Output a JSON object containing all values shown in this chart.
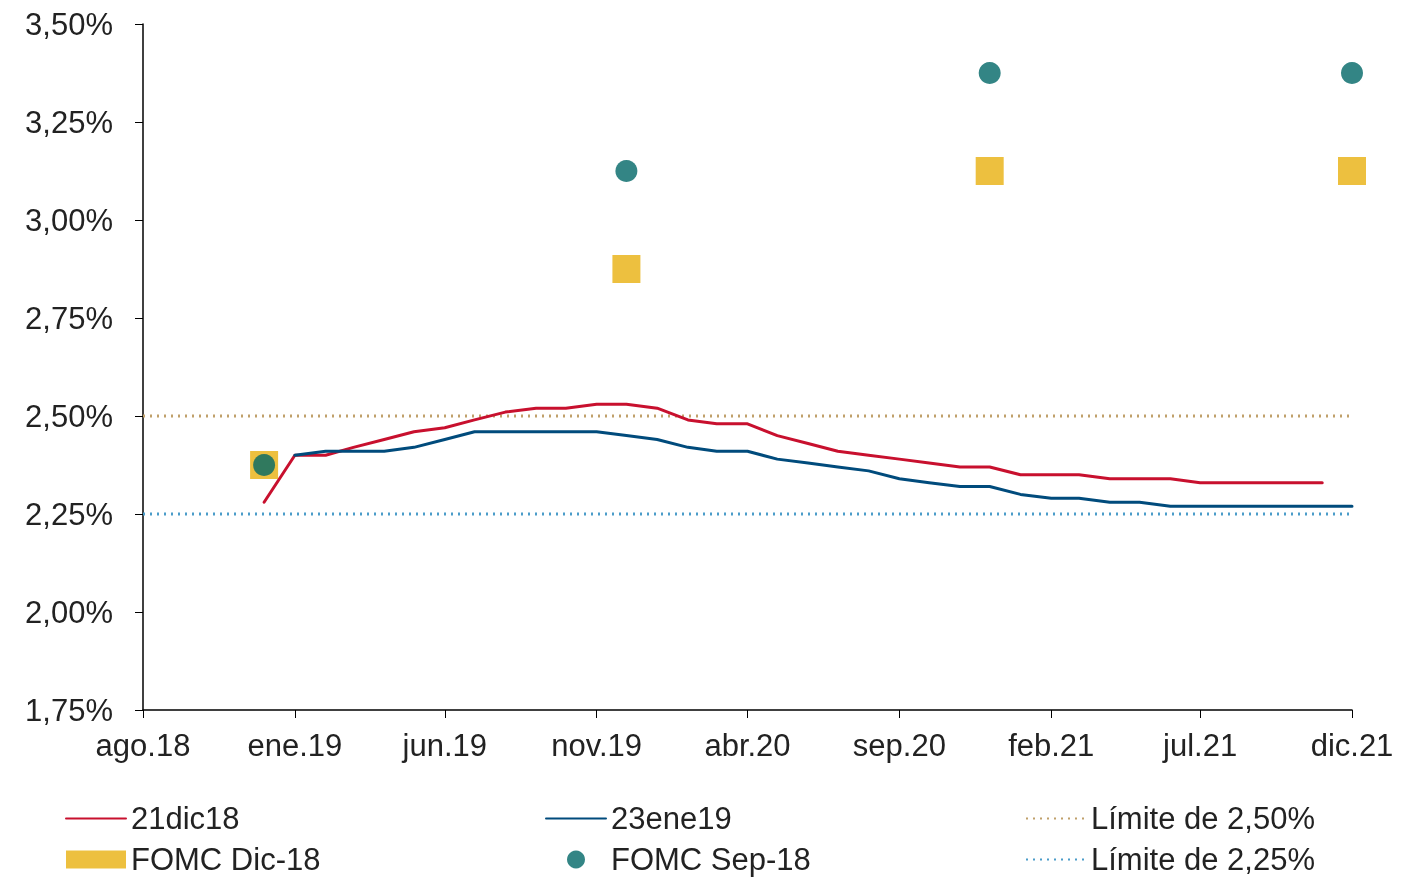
{
  "chart_data": {
    "type": "line",
    "xlim": [
      "2018-08",
      "2021-12"
    ],
    "xticks": [
      {
        "value": "2018-08",
        "label": "ago.18"
      },
      {
        "value": "2019-01",
        "label": "ene.19"
      },
      {
        "value": "2019-06",
        "label": "jun.19"
      },
      {
        "value": "2019-11",
        "label": "nov.19"
      },
      {
        "value": "2020-04",
        "label": "abr.20"
      },
      {
        "value": "2020-09",
        "label": "sep.20"
      },
      {
        "value": "2021-02",
        "label": "feb.21"
      },
      {
        "value": "2021-07",
        "label": "jul.21"
      },
      {
        "value": "2021-12",
        "label": "dic.21"
      }
    ],
    "ylim": [
      1.75,
      3.5
    ],
    "yticks": [
      {
        "value": 1.75,
        "label": "1,75%"
      },
      {
        "value": 2.0,
        "label": "2,00%"
      },
      {
        "value": 2.25,
        "label": "2,25%"
      },
      {
        "value": 2.5,
        "label": "2,50%"
      },
      {
        "value": 2.75,
        "label": "2,75%"
      },
      {
        "value": 3.0,
        "label": "3,00%"
      },
      {
        "value": 3.25,
        "label": "3,25%"
      },
      {
        "value": 3.5,
        "label": "3,50%"
      }
    ],
    "grid": false,
    "legend": "bottom",
    "line_style": "solid",
    "marker": "none",
    "series": [
      {
        "name": "21dic18",
        "color": "#c8102e",
        "x": [
          "2018-12",
          "2019-01",
          "2019-02",
          "2019-03",
          "2019-04",
          "2019-05",
          "2019-06",
          "2019-07",
          "2019-08",
          "2019-09",
          "2019-10",
          "2019-11",
          "2019-12",
          "2020-01",
          "2020-02",
          "2020-03",
          "2020-04",
          "2020-05",
          "2020-06",
          "2020-07",
          "2020-08",
          "2020-09",
          "2020-10",
          "2020-11",
          "2020-12",
          "2021-01",
          "2021-02",
          "2021-03",
          "2021-04",
          "2021-05",
          "2021-06",
          "2021-07",
          "2021-08",
          "2021-09",
          "2021-10",
          "2021-11"
        ],
        "values": [
          2.28,
          2.4,
          2.4,
          2.42,
          2.44,
          2.46,
          2.47,
          2.49,
          2.51,
          2.52,
          2.52,
          2.53,
          2.53,
          2.52,
          2.49,
          2.48,
          2.48,
          2.45,
          2.43,
          2.41,
          2.4,
          2.39,
          2.38,
          2.37,
          2.37,
          2.35,
          2.35,
          2.35,
          2.34,
          2.34,
          2.34,
          2.33,
          2.33,
          2.33,
          2.33,
          2.33
        ]
      },
      {
        "name": "23ene19",
        "color": "#004b7c",
        "x": [
          "2019-01",
          "2019-02",
          "2019-03",
          "2019-04",
          "2019-05",
          "2019-06",
          "2019-07",
          "2019-08",
          "2019-09",
          "2019-10",
          "2019-11",
          "2019-12",
          "2020-01",
          "2020-02",
          "2020-03",
          "2020-04",
          "2020-05",
          "2020-06",
          "2020-07",
          "2020-08",
          "2020-09",
          "2020-10",
          "2020-11",
          "2020-12",
          "2021-01",
          "2021-02",
          "2021-03",
          "2021-04",
          "2021-05",
          "2021-06",
          "2021-07",
          "2021-08",
          "2021-09",
          "2021-10",
          "2021-11",
          "2021-12"
        ],
        "values": [
          2.4,
          2.41,
          2.41,
          2.41,
          2.42,
          2.44,
          2.46,
          2.46,
          2.46,
          2.46,
          2.46,
          2.45,
          2.44,
          2.42,
          2.41,
          2.41,
          2.39,
          2.38,
          2.37,
          2.36,
          2.34,
          2.33,
          2.32,
          2.32,
          2.3,
          2.29,
          2.29,
          2.28,
          2.28,
          2.27,
          2.27,
          2.27,
          2.27,
          2.27,
          2.27,
          2.27
        ]
      },
      {
        "name": "FOMC Dic-18",
        "color": "#e8b00f",
        "type": "scatter",
        "marker": "square",
        "x": [
          "2018-12",
          "2019-12",
          "2020-12",
          "2021-12"
        ],
        "values": [
          2.375,
          2.875,
          3.125,
          3.125
        ]
      },
      {
        "name": "FOMC Sep-18",
        "color": "#006666",
        "type": "scatter",
        "marker": "circle",
        "x": [
          "2018-12",
          "2019-12",
          "2020-12",
          "2021-12"
        ],
        "values": [
          2.375,
          3.125,
          3.375,
          3.375
        ]
      }
    ],
    "ref_lines": [
      {
        "axis": "y",
        "value": 2.5,
        "label": "Límite de 2,50%",
        "color": "#c0a06a",
        "line_style": "dotted"
      },
      {
        "axis": "y",
        "value": 2.25,
        "label": "Límite de 2,25%",
        "color": "#4a9cc9",
        "line_style": "dotted"
      }
    ]
  }
}
